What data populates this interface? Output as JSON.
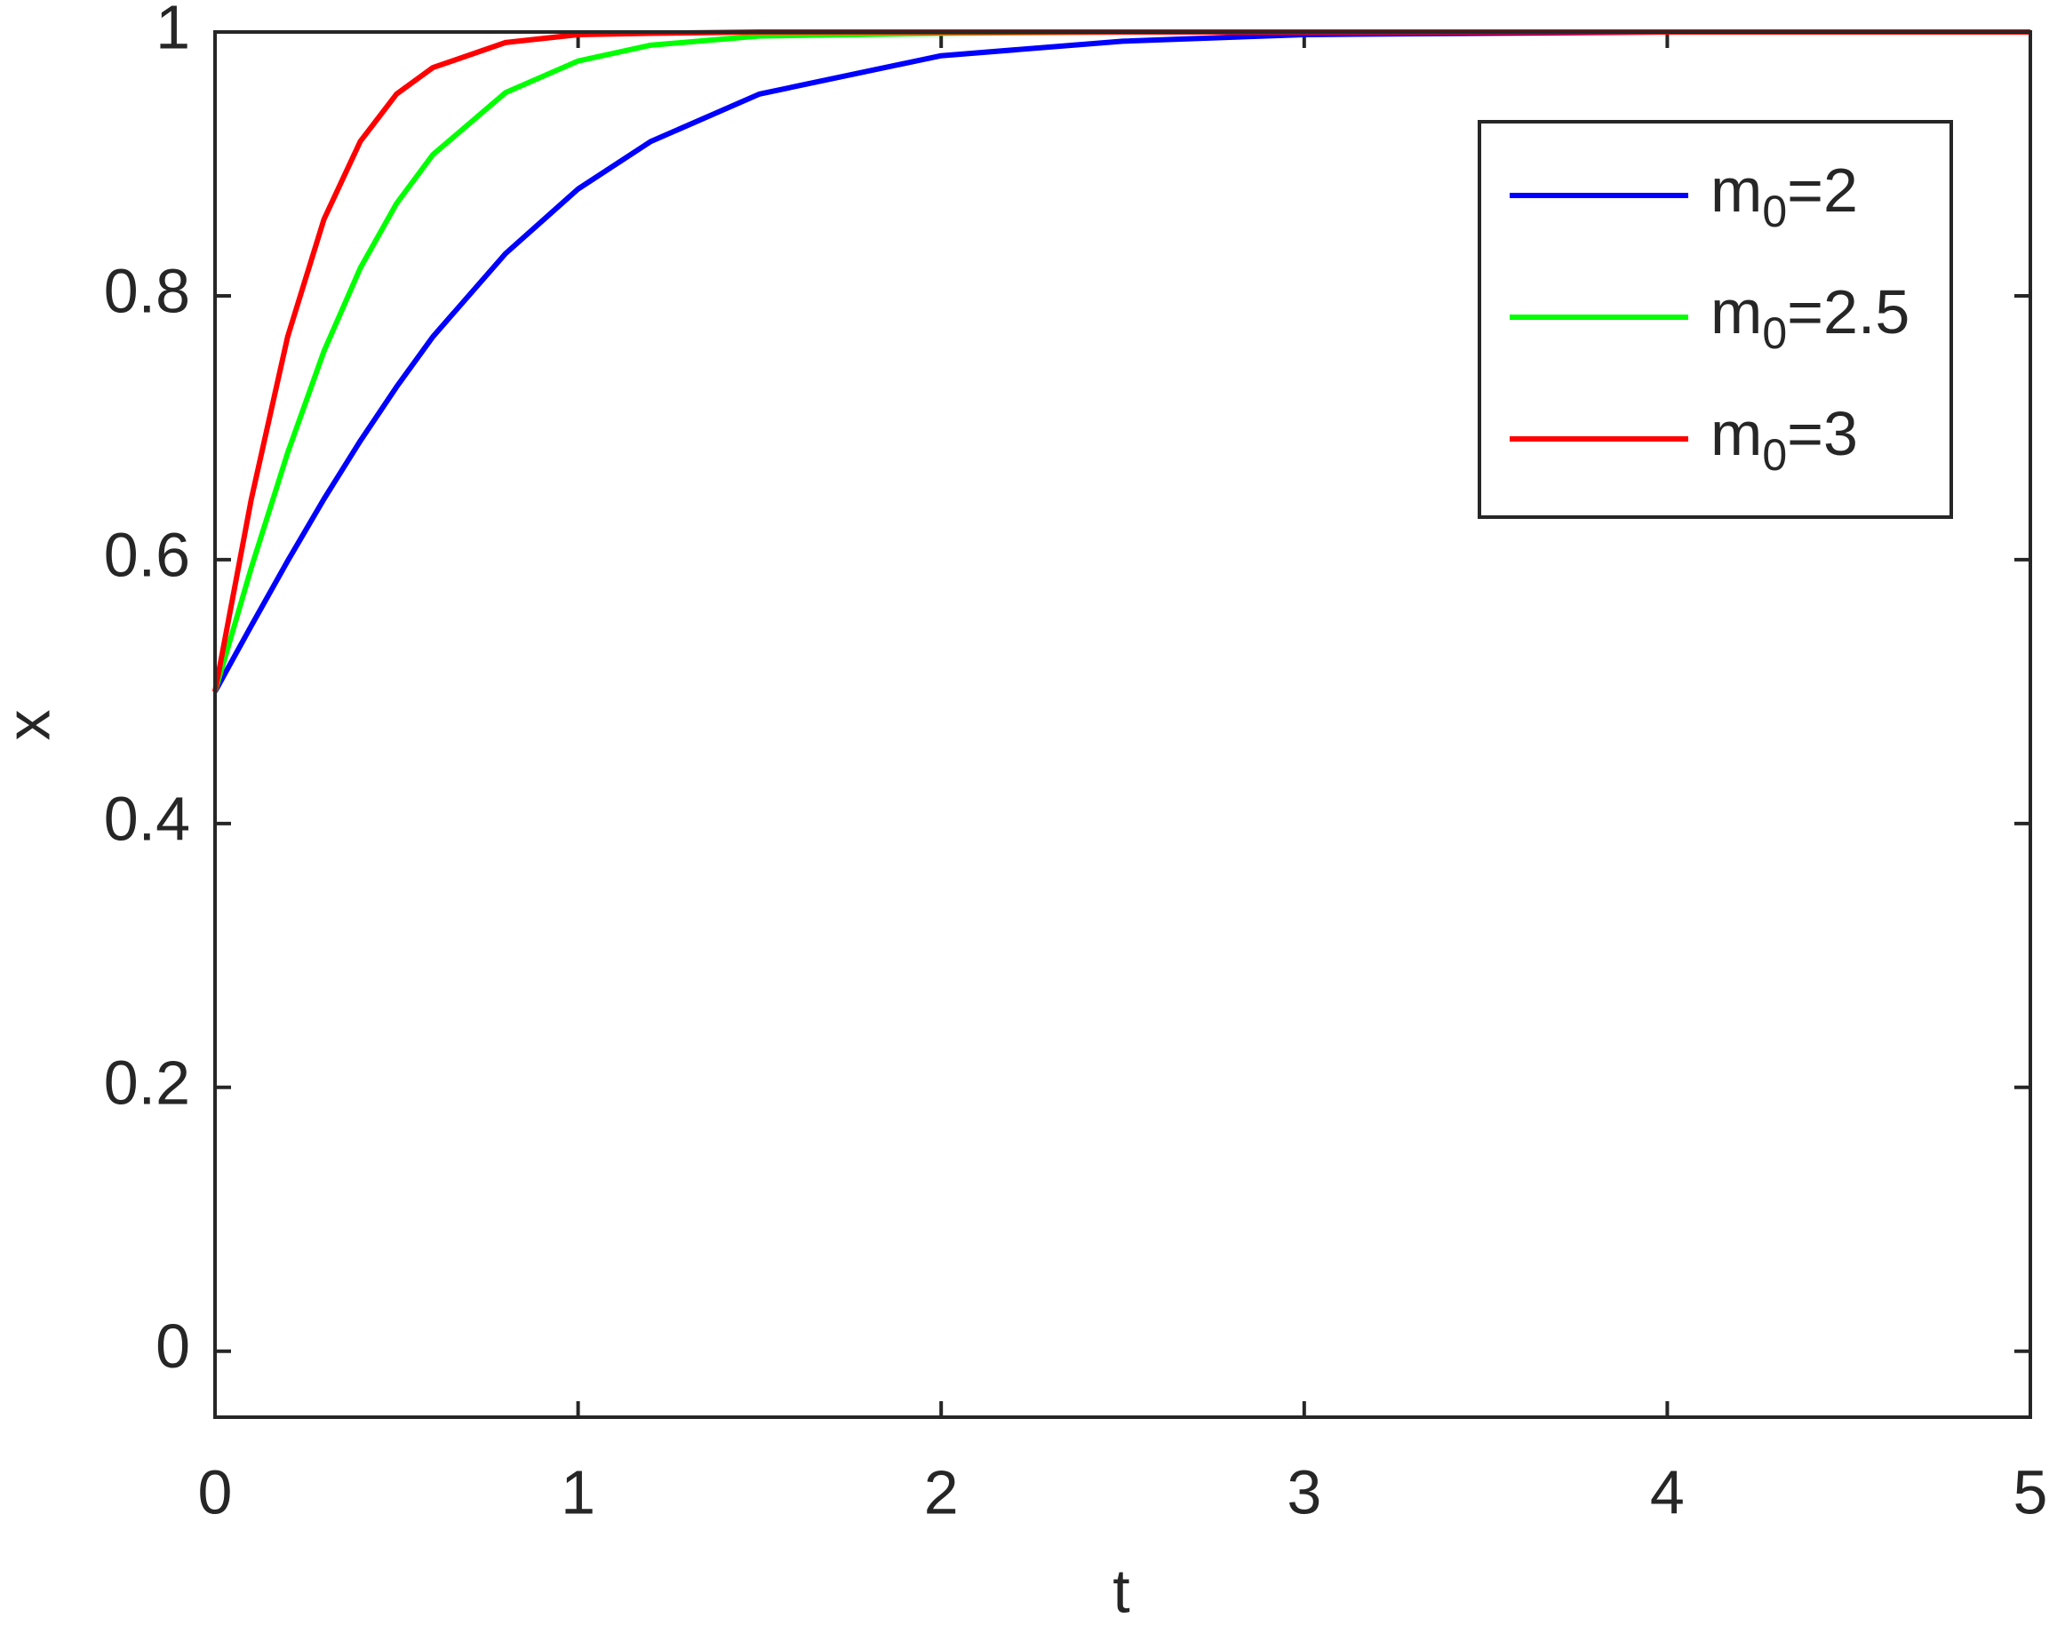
{
  "chart_data": {
    "type": "line",
    "x_label": "t",
    "y_label": "x",
    "x": [
      0,
      0.1,
      0.2,
      0.3,
      0.4,
      0.5,
      0.6,
      0.8,
      1,
      1.2,
      1.5,
      2,
      2.5,
      3,
      4,
      5
    ],
    "series": [
      {
        "name": "m0=2",
        "color": "#0000ff",
        "values": [
          0.5,
          0.55,
          0.599,
          0.646,
          0.69,
          0.731,
          0.769,
          0.832,
          0.881,
          0.917,
          0.953,
          0.982,
          0.993,
          0.998,
          1,
          1
        ]
      },
      {
        "name": "m0=2.5",
        "color": "#00ff00",
        "values": [
          0.5,
          0.594,
          0.681,
          0.758,
          0.821,
          0.87,
          0.907,
          0.954,
          0.978,
          0.99,
          0.997,
          0.999,
          1,
          1,
          1,
          1
        ]
      },
      {
        "name": "m0=3",
        "color": "#ff0000",
        "values": [
          0.5,
          0.646,
          0.769,
          0.858,
          0.917,
          0.953,
          0.973,
          0.992,
          0.998,
          0.999,
          1,
          1,
          1,
          1,
          1,
          1
        ]
      }
    ],
    "xlim": [
      0,
      5
    ],
    "ylim": [
      -0.05,
      1
    ],
    "xticks": [
      0,
      1,
      2,
      3,
      4,
      5
    ],
    "yticks": [
      0,
      0.2,
      0.4,
      0.6,
      0.8,
      1
    ],
    "legend": "upper right"
  }
}
